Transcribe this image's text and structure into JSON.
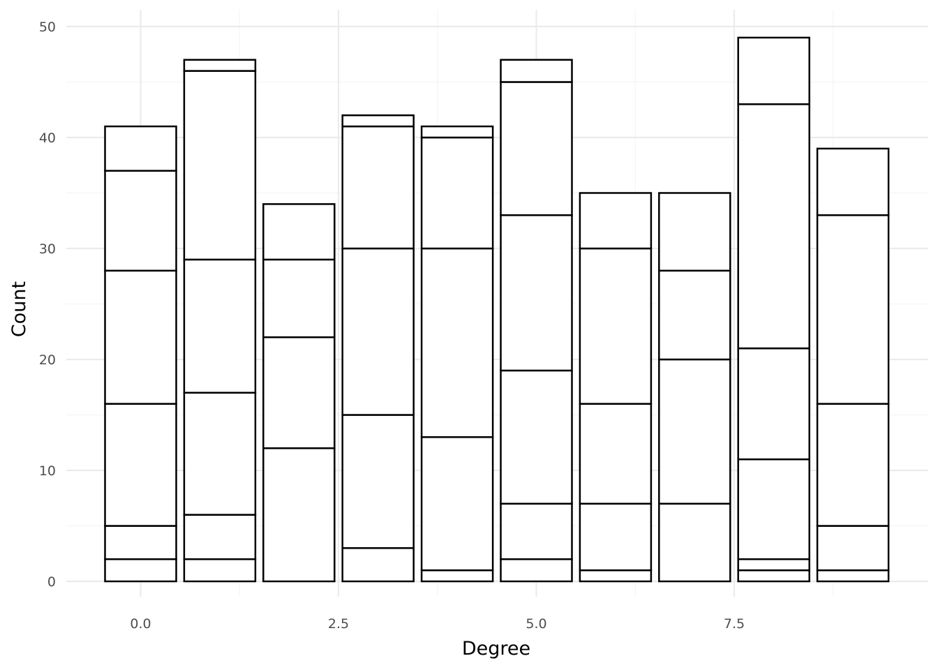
{
  "chart_data": {
    "type": "bar",
    "stacked": true,
    "xlabel": "Degree",
    "ylabel": "Count",
    "xlim": [
      -1,
      9.5
    ],
    "ylim": [
      0,
      50
    ],
    "x_ticks": [
      0.0,
      2.5,
      5.0,
      7.5
    ],
    "x_tick_labels": [
      "0.0",
      "2.5",
      "5.0",
      "7.5"
    ],
    "y_ticks": [
      0,
      10,
      20,
      30,
      40,
      50
    ],
    "y_tick_labels": [
      "0",
      "10",
      "20",
      "30",
      "40",
      "50"
    ],
    "grid": true,
    "bar_fill": "#ffffff",
    "bar_outline": "#000000",
    "bars": [
      {
        "x": 0,
        "segment_tops": [
          2,
          5,
          16,
          28,
          37,
          41
        ]
      },
      {
        "x": 1,
        "segment_tops": [
          2,
          6,
          17,
          29,
          46,
          47
        ]
      },
      {
        "x": 2,
        "segment_tops": [
          12,
          22,
          29,
          34
        ]
      },
      {
        "x": 3,
        "segment_tops": [
          3,
          15,
          30,
          41,
          42
        ]
      },
      {
        "x": 4,
        "segment_tops": [
          1,
          13,
          30,
          40,
          41
        ]
      },
      {
        "x": 5,
        "segment_tops": [
          2,
          7,
          19,
          33,
          45,
          47
        ]
      },
      {
        "x": 6,
        "segment_tops": [
          1,
          7,
          16,
          30,
          35
        ]
      },
      {
        "x": 7,
        "segment_tops": [
          7,
          20,
          28,
          35
        ]
      },
      {
        "x": 8,
        "segment_tops": [
          1,
          2,
          11,
          21,
          43,
          49
        ]
      },
      {
        "x": 9,
        "segment_tops": [
          1,
          5,
          16,
          33,
          39
        ]
      }
    ],
    "totals": [
      41,
      47,
      34,
      42,
      41,
      47,
      35,
      35,
      49,
      39
    ]
  }
}
